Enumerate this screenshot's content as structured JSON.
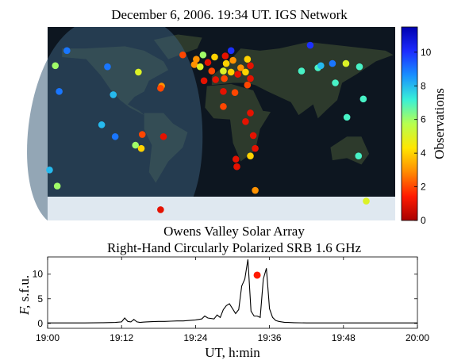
{
  "chart_data": [
    {
      "type": "scatter",
      "title": "December 6, 2006. 19:34 UT. IGS Network",
      "colorbar": {
        "label": "Observations",
        "ticks": [
          "0",
          "2",
          "4",
          "6",
          "8",
          "10"
        ],
        "range": [
          0,
          11.5
        ],
        "colors": [
          "#a80000",
          "#ff1a00",
          "#ff8a00",
          "#ffe600",
          "#b6ff50",
          "#38f0d8",
          "#1890ff",
          "#1c2cff",
          "#0000b0"
        ]
      },
      "map": {
        "ocean_color": "#1f3140",
        "night_color": "#0d1620",
        "day_color": "#3a5c78",
        "ice_color": "#dfe8f0"
      },
      "stations": [
        {
          "lon": -160,
          "lat": 68,
          "obs": 9
        },
        {
          "lon": -172,
          "lat": 54,
          "obs": 6
        },
        {
          "lon": -168,
          "lat": 30,
          "obs": 9
        },
        {
          "lon": -118,
          "lat": 53,
          "obs": 9
        },
        {
          "lon": -112,
          "lat": 27,
          "obs": 8
        },
        {
          "lon": -86,
          "lat": 48,
          "obs": 5
        },
        {
          "lon": -124,
          "lat": -1,
          "obs": 8
        },
        {
          "lon": -110,
          "lat": -12,
          "obs": 9
        },
        {
          "lon": -62,
          "lat": 35,
          "obs": 3
        },
        {
          "lon": -63,
          "lat": 33,
          "obs": 2
        },
        {
          "lon": -82,
          "lat": -10,
          "obs": 2
        },
        {
          "lon": -60,
          "lat": -12,
          "obs": 1
        },
        {
          "lon": -89,
          "lat": -20,
          "obs": 6
        },
        {
          "lon": -83,
          "lat": -23,
          "obs": 4
        },
        {
          "lon": -178,
          "lat": -43,
          "obs": 8
        },
        {
          "lon": -170,
          "lat": -58,
          "obs": 6
        },
        {
          "lon": -63,
          "lat": -80,
          "obs": 1
        },
        {
          "lon": -40,
          "lat": 64,
          "obs": 2
        },
        {
          "lon": -26,
          "lat": 60,
          "obs": 3
        },
        {
          "lon": -19,
          "lat": 64,
          "obs": 6
        },
        {
          "lon": -7,
          "lat": 62,
          "obs": 4
        },
        {
          "lon": 4,
          "lat": 63,
          "obs": 1
        },
        {
          "lon": 10,
          "lat": 68,
          "obs": 10
        },
        {
          "lon": -28,
          "lat": 55,
          "obs": 3
        },
        {
          "lon": -22,
          "lat": 53,
          "obs": 5
        },
        {
          "lon": -14,
          "lat": 57,
          "obs": 1
        },
        {
          "lon": 5,
          "lat": 56,
          "obs": 4
        },
        {
          "lon": 12,
          "lat": 59,
          "obs": 3
        },
        {
          "lon": 20,
          "lat": 52,
          "obs": 3
        },
        {
          "lon": 27,
          "lat": 60,
          "obs": 4
        },
        {
          "lon": 30,
          "lat": 54,
          "obs": 1
        },
        {
          "lon": -10,
          "lat": 49,
          "obs": 2
        },
        {
          "lon": 2,
          "lat": 49,
          "obs": 5
        },
        {
          "lon": 10,
          "lat": 48,
          "obs": 4
        },
        {
          "lon": 17,
          "lat": 46,
          "obs": 1
        },
        {
          "lon": 25,
          "lat": 48,
          "obs": 4
        },
        {
          "lon": 30,
          "lat": 42,
          "obs": 1
        },
        {
          "lon": -18,
          "lat": 40,
          "obs": 1
        },
        {
          "lon": -6,
          "lat": 41,
          "obs": 1
        },
        {
          "lon": 3,
          "lat": 42,
          "obs": 2
        },
        {
          "lon": 27,
          "lat": 36,
          "obs": 2
        },
        {
          "lon": 14,
          "lat": 29,
          "obs": 2
        },
        {
          "lon": 2,
          "lat": 30,
          "obs": 1
        },
        {
          "lon": 2,
          "lat": 16,
          "obs": 2
        },
        {
          "lon": 30,
          "lat": 10,
          "obs": 1
        },
        {
          "lon": 25,
          "lat": 2,
          "obs": 1
        },
        {
          "lon": 33,
          "lat": -11,
          "obs": 1
        },
        {
          "lon": 35,
          "lat": -23,
          "obs": 1
        },
        {
          "lon": 30,
          "lat": -30,
          "obs": 4
        },
        {
          "lon": 15,
          "lat": -33,
          "obs": 1
        },
        {
          "lon": 16,
          "lat": -40,
          "obs": 1
        },
        {
          "lon": 35,
          "lat": -62,
          "obs": 3
        },
        {
          "lon": 92,
          "lat": 73,
          "obs": 10
        },
        {
          "lon": 83,
          "lat": 49,
          "obs": 7
        },
        {
          "lon": 100,
          "lat": 52,
          "obs": 7
        },
        {
          "lon": 103,
          "lat": 54,
          "obs": 8
        },
        {
          "lon": 115,
          "lat": 56,
          "obs": 9
        },
        {
          "lon": 129,
          "lat": 56,
          "obs": 5
        },
        {
          "lon": 143,
          "lat": 53,
          "obs": 7
        },
        {
          "lon": 118,
          "lat": 38,
          "obs": 7
        },
        {
          "lon": 147,
          "lat": 23,
          "obs": 7
        },
        {
          "lon": 130,
          "lat": 6,
          "obs": 7
        },
        {
          "lon": 142,
          "lat": -30,
          "obs": 7
        },
        {
          "lon": 150,
          "lat": -72,
          "obs": 5
        }
      ]
    },
    {
      "type": "line",
      "title": "Owens Valley Solar Array",
      "subtitle": "Right-Hand Circularly Polarized SRB 1.6 GHz",
      "xlabel": "UT, h:min",
      "ylabel": "F, s.f.u.",
      "xlim": [
        0,
        60
      ],
      "ylim": [
        -1,
        13.5
      ],
      "xticks": [
        {
          "t": 0,
          "label": "19:00"
        },
        {
          "t": 12,
          "label": "19:12"
        },
        {
          "t": 24,
          "label": "19:24"
        },
        {
          "t": 36,
          "label": "19:36"
        },
        {
          "t": 48,
          "label": "19:48"
        },
        {
          "t": 60,
          "label": "20:00"
        }
      ],
      "yticks": [
        0,
        5,
        10
      ],
      "series": [
        {
          "t": [
            0,
            3,
            6,
            9,
            11,
            12,
            12.5,
            13,
            13.5,
            14,
            14.5,
            15,
            15.5,
            16,
            17,
            18,
            19,
            20,
            21,
            22,
            23,
            24,
            24.5,
            25,
            25.5,
            26,
            27,
            27.5,
            28,
            28.5,
            29,
            29.5,
            30,
            30.5,
            31,
            31.5,
            32,
            32.5,
            33,
            33.5,
            34,
            34.5,
            35,
            35.5,
            36,
            36.5,
            37,
            37.5,
            38,
            38.5,
            39,
            40,
            42,
            45,
            48,
            52,
            56,
            60
          ],
          "F": [
            0.1,
            0.1,
            0.1,
            0.15,
            0.2,
            0.3,
            1.1,
            0.4,
            0.3,
            0.8,
            0.3,
            0.2,
            0.25,
            0.3,
            0.35,
            0.4,
            0.4,
            0.45,
            0.5,
            0.5,
            0.6,
            0.7,
            0.8,
            0.9,
            1.5,
            1.1,
            0.9,
            1.7,
            1.2,
            2.8,
            3.6,
            4.0,
            3.0,
            2.0,
            2.8,
            7.6,
            9.0,
            13.0,
            2.5,
            1.5,
            1.5,
            1.2,
            9.0,
            11.2,
            3.0,
            1.2,
            0.6,
            0.4,
            0.3,
            0.2,
            0.2,
            0.15,
            0.1,
            0.1,
            0.1,
            0.1,
            0.1,
            0.1
          ],
          "color": "#000000"
        }
      ],
      "marker": {
        "t": 34,
        "F": 9.8,
        "color": "#ff1a00"
      }
    }
  ]
}
